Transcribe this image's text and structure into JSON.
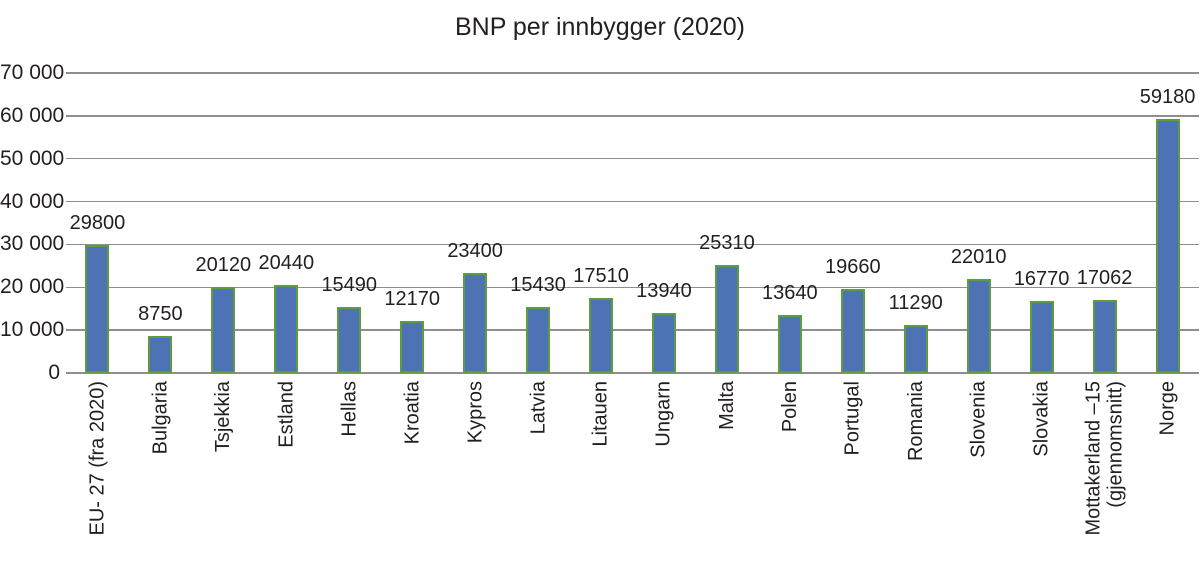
{
  "chart_data": {
    "type": "bar",
    "title": "BNP per innbygger (2020)",
    "categories": [
      "EU- 27 (fra 2020)",
      "Bulgaria",
      "Tsjekkia",
      "Estland",
      "Hellas",
      "Kroatia",
      "Kypros",
      "Latvia",
      "Litauen",
      "Ungarn",
      "Malta",
      "Polen",
      "Portugal",
      "Romania",
      "Slovenia",
      "Slovakia",
      "Mottakerland –15\n(gjennomsnitt)",
      "Norge"
    ],
    "values": [
      29800,
      8750,
      20120,
      20440,
      15490,
      12170,
      23400,
      15430,
      17510,
      13940,
      25310,
      13640,
      19660,
      11290,
      22010,
      16770,
      17062,
      59180
    ],
    "data_labels": [
      "29800",
      "8750",
      "20120",
      "20440",
      "15490",
      "12170",
      "23400",
      "15430",
      "17510",
      "13940",
      "25310",
      "13640",
      "19660",
      "11290",
      "22010",
      "16770",
      "17062",
      "59180"
    ],
    "y_ticks": [
      "70 000",
      "60 000",
      "50 000",
      "40 000",
      "30 000",
      "20 000",
      "10 000",
      "0"
    ],
    "xlabel": "",
    "ylabel": "",
    "ylim": [
      0,
      70000
    ],
    "grid": true,
    "legend": "none",
    "colors": {
      "bar_fill": "#4d73b5",
      "bar_border": "#5e9b41",
      "gridline": "#8e8e8e",
      "text": "#231f20",
      "background": "#ffffff"
    }
  }
}
